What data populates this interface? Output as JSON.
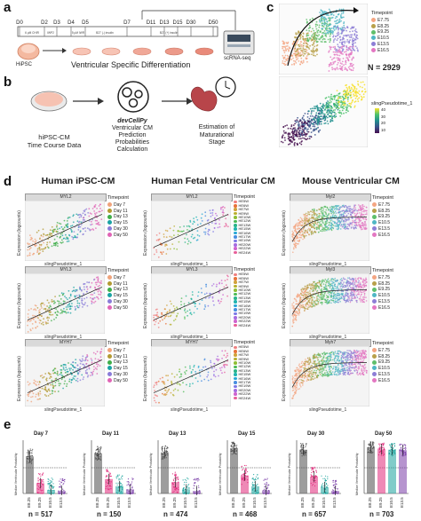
{
  "panels": {
    "a": "a",
    "b": "b",
    "c": "c",
    "d": "d",
    "e": "e"
  },
  "panel_a": {
    "days": [
      "D0",
      "D2",
      "D3",
      "D4",
      "D5",
      "D7",
      "D11",
      "D13",
      "D15",
      "D30",
      "D50"
    ],
    "media": [
      "6 μM CHIR",
      "IWP2",
      "5 μM IWR",
      "B27 (-) insulin",
      "B27 (+) insulin"
    ],
    "cell_label": "HiPSC",
    "process_label": "Ventricular Specific Differentiation",
    "seq_label": "scRNA-seq"
  },
  "panel_b": {
    "input_line1": "hiPSC-CM",
    "input_line2": "Time Course Data",
    "tool_name": "devCellPy",
    "tool_line2": "Ventricular CM",
    "tool_line3": "Prediction",
    "tool_line4": "Probabilities",
    "tool_line5": "Calculation",
    "output_line1": "Estimation of",
    "output_line2": "Maturational",
    "output_line3": "Stage"
  },
  "panel_c": {
    "legend_title": "Timepoint",
    "legend_items": [
      {
        "label": "E7.75",
        "color": "#f4a582"
      },
      {
        "label": "E8.25",
        "color": "#b8a04a"
      },
      {
        "label": "E9.25",
        "color": "#5fbf6b"
      },
      {
        "label": "E10.5",
        "color": "#4fb7c4"
      },
      {
        "label": "E13.5",
        "color": "#8d7ed6"
      },
      {
        "label": "E16.5",
        "color": "#e377c2"
      }
    ],
    "n_label": "N = 2929",
    "pseudo_legend_title": "slingPseudotime_1",
    "pseudo_ticks": [
      "40",
      "30",
      "20",
      "10"
    ],
    "axis_x": "Harmony UMAP_1",
    "axis_y": "Harmony UMAP_2"
  },
  "panel_d": {
    "col_titles": [
      "Human iPSC-CM",
      "Human Fetal Ventricular CM",
      "Mouse Ventricular CM"
    ],
    "genes": [
      [
        "MYL2",
        "MYL2",
        "Myl2"
      ],
      [
        "MYL3",
        "MYL3",
        "Myl3"
      ],
      [
        "MYH7",
        "MYH7",
        "Myh7"
      ]
    ],
    "ylabel": "Expression (logcounts)",
    "xlabel": "slingPseudotime_1",
    "x_ticks": [
      "0",
      "10",
      "20",
      "30",
      "40"
    ],
    "legend_title": "Timepoint",
    "ipsc_legend": [
      {
        "label": "Day 7",
        "color": "#f0a37b"
      },
      {
        "label": "Day 11",
        "color": "#b39a32"
      },
      {
        "label": "Day 13",
        "color": "#3fae4a"
      },
      {
        "label": "Day 15",
        "color": "#1aa3a3"
      },
      {
        "label": "Day 30",
        "color": "#8a7cd8"
      },
      {
        "label": "Day 50",
        "color": "#e064b5"
      }
    ],
    "fetal_legend": [
      {
        "label": "HE5W",
        "color": "#f08080"
      },
      {
        "label": "HE6W",
        "color": "#e8733a"
      },
      {
        "label": "HE7W",
        "color": "#d1a23b"
      },
      {
        "label": "HE9W",
        "color": "#b8b02f"
      },
      {
        "label": "HE10W",
        "color": "#8fbf36"
      },
      {
        "label": "HE12W",
        "color": "#4dbb55"
      },
      {
        "label": "HE13W",
        "color": "#2bb58a"
      },
      {
        "label": "HE15W",
        "color": "#22b5b0"
      },
      {
        "label": "HE16W",
        "color": "#2aa8d6"
      },
      {
        "label": "HE17W",
        "color": "#4a8fe0"
      },
      {
        "label": "HE19W",
        "color": "#7d79e6"
      },
      {
        "label": "HE20W",
        "color": "#a56ce0"
      },
      {
        "label": "HE22W",
        "color": "#cf63cf"
      },
      {
        "label": "HE24W",
        "color": "#e8609a"
      }
    ],
    "mouse_legend": [
      {
        "label": "E7.75",
        "color": "#f4a582"
      },
      {
        "label": "E8.25",
        "color": "#b8a04a"
      },
      {
        "label": "E9.25",
        "color": "#5fbf6b"
      },
      {
        "label": "E10.5",
        "color": "#4fb7c4"
      },
      {
        "label": "E13.5",
        "color": "#8d7ed6"
      },
      {
        "label": "E16.5",
        "color": "#e377c2"
      }
    ]
  },
  "panel_e": {
    "ylabel": "Median Ventricular Probability",
    "x_categories": [
      "E8.25",
      "E9.25",
      "E10.5",
      "E13.5"
    ],
    "category_colors": [
      "#4d4d4d",
      "#e0287a",
      "#1aa39c",
      "#7a3da8"
    ],
    "subpanels": [
      {
        "title": "Day 7",
        "n": "n = 517",
        "values": [
          0.72,
          0.2,
          0.07,
          0.05
        ]
      },
      {
        "title": "Day 11",
        "n": "n = 150",
        "values": [
          0.78,
          0.28,
          0.14,
          0.08
        ]
      },
      {
        "title": "Day 13",
        "n": "n = 474",
        "values": [
          0.8,
          0.22,
          0.08,
          0.05
        ]
      },
      {
        "title": "Day 15",
        "n": "n = 468",
        "values": [
          0.88,
          0.35,
          0.14,
          0.06
        ]
      },
      {
        "title": "Day 30",
        "n": "n = 657",
        "values": [
          0.85,
          0.33,
          0.12,
          0.05
        ]
      },
      {
        "title": "Day 50",
        "n": "n = 703",
        "values": [
          0.9,
          0.86,
          0.85,
          0.84
        ]
      }
    ],
    "threshold": 0.5
  }
}
